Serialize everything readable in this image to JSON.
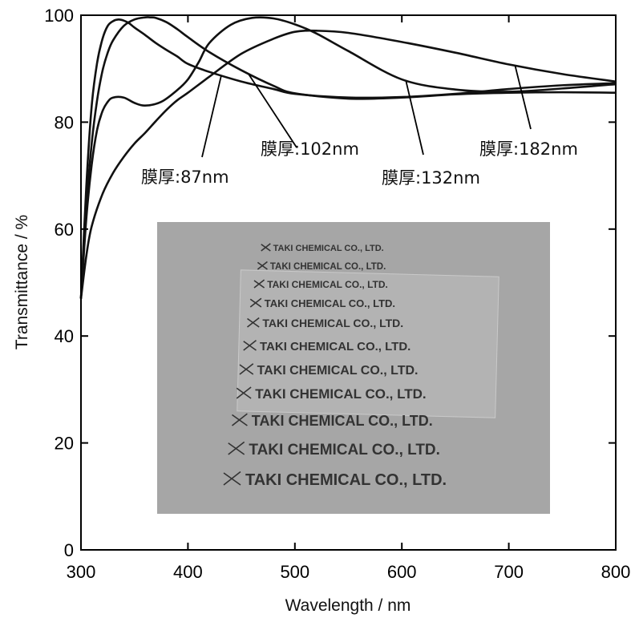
{
  "chart_data": {
    "type": "line",
    "xlabel": "Wavelength / nm",
    "ylabel": "Transmittance / %",
    "xlim": [
      300,
      800
    ],
    "ylim": [
      0,
      100
    ],
    "xticks": [
      300,
      400,
      500,
      600,
      700,
      800
    ],
    "yticks": [
      0,
      20,
      40,
      60,
      80,
      100
    ],
    "grid": false,
    "legend": "none",
    "series": [
      {
        "name": "膜厚:87nm",
        "x": [
          300,
          305,
          310,
          315,
          320,
          325,
          330,
          335,
          340,
          345,
          350,
          360,
          370,
          380,
          390,
          400,
          420,
          450,
          480,
          500,
          550,
          600,
          650,
          700,
          750,
          800
        ],
        "y": [
          47,
          68,
          83,
          91,
          95.5,
          98,
          98.9,
          99.2,
          99,
          98.5,
          97.7,
          96.3,
          94.8,
          93.5,
          92.3,
          90.9,
          89.4,
          87.6,
          86.2,
          85.3,
          84.6,
          84.7,
          85.3,
          86.2,
          86.9,
          87.3
        ]
      },
      {
        "name": "膜厚:102nm",
        "x": [
          300,
          305,
          310,
          315,
          320,
          325,
          330,
          340,
          350,
          360,
          365,
          370,
          380,
          390,
          400,
          420,
          450,
          480,
          500,
          550,
          600,
          650,
          700,
          750,
          800
        ],
        "y": [
          47,
          64,
          76,
          84,
          89.5,
          93,
          95.3,
          98,
          99.2,
          99.6,
          99.6,
          99.5,
          98.7,
          97.4,
          95.9,
          93.1,
          89.7,
          86.8,
          85.4,
          84.4,
          84.6,
          85.2,
          85.5,
          85.6,
          85.5
        ]
      },
      {
        "name": "膜厚:132nm",
        "x": [
          300,
          305,
          310,
          315,
          320,
          325,
          330,
          340,
          350,
          360,
          375,
          390,
          400,
          410,
          420,
          440,
          460,
          480,
          500,
          520,
          550,
          600,
          650,
          700,
          750,
          800
        ],
        "y": [
          47,
          62,
          72,
          78.5,
          82,
          83.8,
          84.6,
          84.6,
          83.6,
          83.1,
          83.8,
          86,
          88,
          91.2,
          94.8,
          98.2,
          99.5,
          99.4,
          98.3,
          96.6,
          93.3,
          88,
          86.1,
          85.7,
          86.3,
          87.1
        ]
      },
      {
        "name": "膜厚:182nm",
        "x": [
          300,
          305,
          310,
          320,
          330,
          340,
          350,
          360,
          370,
          380,
          390,
          400,
          420,
          450,
          480,
          500,
          520,
          550,
          600,
          650,
          700,
          750,
          800
        ],
        "y": [
          47,
          55,
          60.5,
          66.5,
          70.5,
          73.5,
          76,
          78,
          80.2,
          82.3,
          84.1,
          85.5,
          88.5,
          92.8,
          95.6,
          96.9,
          97.1,
          96.7,
          95,
          93,
          90.8,
          89,
          87.6
        ]
      }
    ],
    "annotations": [
      {
        "text": "膜厚:87nm",
        "series": 0,
        "x": 431,
        "y": 88.6
      },
      {
        "text": "膜厚:102nm",
        "series": 1,
        "x": 457,
        "y": 88.9
      },
      {
        "text": "膜厚:132nm",
        "series": 2,
        "x": 604,
        "y": 87.6
      },
      {
        "text": "膜厚:182nm",
        "series": 3,
        "x": 706,
        "y": 90.5
      }
    ],
    "inset_photo": {
      "lines": [
        "TAKI CHEMICAL CO., LTD.",
        "TAKI CHEMICAL CO., LTD.",
        "TAKI CHEMICAL CO., LTD.",
        "TAKI CHEMICAL CO., LTD.",
        "TAKI CHEMICAL CO., LTD.",
        "TAKI CHEMICAL CO., LTD.",
        "TAKI CHEMICAL CO., LTD.",
        "TAKI CHEMICAL CO., LTD.",
        "TAKI CHEMICAL CO., LTD.",
        "TAKI CHEMICAL CO., LTD.",
        "TAKI CHEMICAL CO., LTD."
      ],
      "background": "#a6a6a6",
      "film_color": "#bdbdbd"
    },
    "line_color": "#111111"
  }
}
